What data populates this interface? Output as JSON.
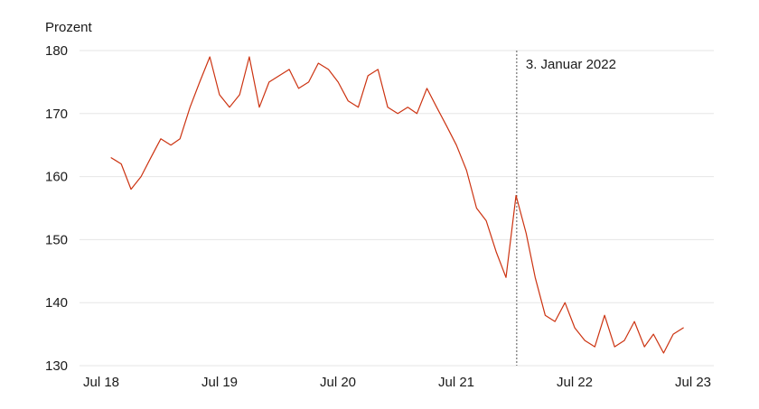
{
  "chart_data": {
    "type": "line",
    "ylabel": "Prozent",
    "ylim": [
      130,
      180
    ],
    "yticks": [
      130,
      140,
      150,
      160,
      170,
      180
    ],
    "xticks": [
      "Jul 18",
      "Jul 19",
      "Jul 20",
      "Jul 21",
      "Jul 22",
      "Jul 23"
    ],
    "grid": true,
    "line_color": "#cc3311",
    "annotation": {
      "label": "3. Januar 2022",
      "x": "2022-01-03"
    },
    "series": [
      {
        "x": [
          "2018-08-01",
          "2018-09-01",
          "2018-10-01",
          "2018-11-01",
          "2018-12-01",
          "2019-01-01",
          "2019-02-01",
          "2019-03-01",
          "2019-04-01",
          "2019-05-01",
          "2019-06-01",
          "2019-07-01",
          "2019-08-01",
          "2019-09-01",
          "2019-10-01",
          "2019-11-01",
          "2019-12-01",
          "2020-01-01",
          "2020-02-01",
          "2020-03-01",
          "2020-04-01",
          "2020-05-01",
          "2020-06-01",
          "2020-07-01",
          "2020-08-01",
          "2020-09-01",
          "2020-10-01",
          "2020-11-01",
          "2020-12-01",
          "2021-01-01",
          "2021-02-01",
          "2021-03-01",
          "2021-04-01",
          "2021-05-01",
          "2021-06-01",
          "2021-07-01",
          "2021-08-01",
          "2021-09-01",
          "2021-10-01",
          "2021-11-01",
          "2021-12-01",
          "2022-01-01",
          "2022-02-01",
          "2022-03-01",
          "2022-04-01",
          "2022-05-01",
          "2022-06-01",
          "2022-07-01",
          "2022-08-01",
          "2022-09-01",
          "2022-10-01",
          "2022-11-01",
          "2022-12-01",
          "2023-01-01",
          "2023-02-01",
          "2023-03-01",
          "2023-04-01",
          "2023-05-01",
          "2023-06-01"
        ],
        "y": [
          163,
          162,
          158,
          160,
          163,
          166,
          165,
          166,
          171,
          175,
          179,
          173,
          171,
          173,
          179,
          171,
          175,
          176,
          177,
          174,
          175,
          178,
          177,
          175,
          172,
          171,
          176,
          177,
          171,
          170,
          171,
          170,
          174,
          171,
          168,
          165,
          161,
          155,
          153,
          148,
          144,
          157,
          151,
          144,
          138,
          137,
          140,
          136,
          134,
          133,
          138,
          133,
          134,
          137,
          133,
          135,
          132,
          135,
          136
        ]
      }
    ]
  }
}
